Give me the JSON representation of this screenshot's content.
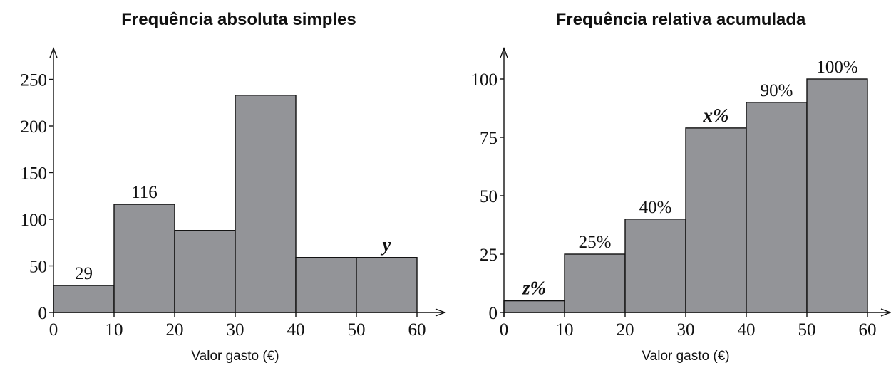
{
  "chart_data": [
    {
      "type": "bar",
      "title": "Frequência absoluta simples",
      "xlabel": "Valor gasto (€)",
      "ylabel": "",
      "x_ticks": [
        0,
        10,
        20,
        30,
        40,
        50,
        60
      ],
      "y_ticks": [
        0,
        50,
        100,
        150,
        200,
        250
      ],
      "ylim": [
        0,
        275
      ],
      "bins": [
        [
          0,
          10
        ],
        [
          10,
          20
        ],
        [
          20,
          30
        ],
        [
          30,
          40
        ],
        [
          40,
          50
        ],
        [
          50,
          60
        ]
      ],
      "values": [
        29,
        116,
        88,
        233,
        59,
        59
      ],
      "bar_labels": [
        "29",
        "116",
        "",
        "",
        "",
        "y"
      ],
      "bar_color": "#939498"
    },
    {
      "type": "bar",
      "title": "Frequência relativa acumulada",
      "xlabel": "Valor gasto (€)",
      "ylabel": "",
      "x_ticks": [
        0,
        10,
        20,
        30,
        40,
        50,
        60
      ],
      "y_ticks": [
        0,
        25,
        50,
        75,
        100
      ],
      "ylim": [
        0,
        110
      ],
      "bins": [
        [
          0,
          10
        ],
        [
          10,
          20
        ],
        [
          20,
          30
        ],
        [
          30,
          40
        ],
        [
          40,
          50
        ],
        [
          50,
          60
        ]
      ],
      "values": [
        5,
        25,
        40,
        79,
        90,
        100
      ],
      "bar_labels": [
        "z%",
        "25%",
        "40%",
        "x%",
        "90%",
        "100%"
      ],
      "bar_color": "#939498"
    }
  ]
}
